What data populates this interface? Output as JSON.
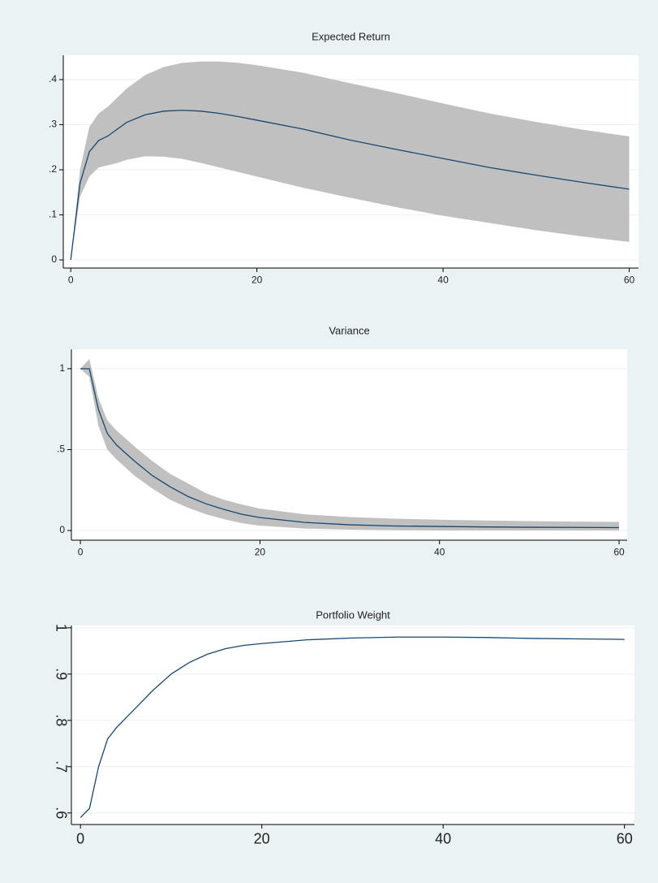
{
  "chart_data": [
    {
      "type": "line",
      "title": "Expected Return",
      "x": [
        0,
        1,
        2,
        3,
        4,
        5,
        6,
        8,
        10,
        12,
        14,
        16,
        18,
        20,
        25,
        30,
        35,
        40,
        45,
        50,
        55,
        60
      ],
      "values": [
        0,
        0.17,
        0.24,
        0.265,
        0.275,
        0.29,
        0.305,
        0.322,
        0.33,
        0.332,
        0.33,
        0.325,
        0.318,
        0.31,
        0.29,
        0.266,
        0.245,
        0.225,
        0.205,
        0.188,
        0.172,
        0.157
      ],
      "upper": [
        0,
        0.2,
        0.295,
        0.325,
        0.34,
        0.36,
        0.38,
        0.41,
        0.428,
        0.437,
        0.44,
        0.44,
        0.437,
        0.432,
        0.415,
        0.392,
        0.37,
        0.347,
        0.325,
        0.306,
        0.289,
        0.274
      ],
      "lower": [
        0,
        0.14,
        0.185,
        0.205,
        0.21,
        0.215,
        0.222,
        0.23,
        0.229,
        0.224,
        0.215,
        0.205,
        0.195,
        0.185,
        0.16,
        0.138,
        0.117,
        0.098,
        0.082,
        0.066,
        0.052,
        0.04
      ],
      "color": "#1a476f",
      "band_color": "#c0c0c0",
      "xlim": [
        -0.8,
        61
      ],
      "ylim": [
        -0.018,
        0.454
      ],
      "xticks": [
        0,
        20,
        40,
        60
      ],
      "yticks": [
        0,
        {
          "value": 0.1,
          "label": ".1"
        },
        {
          "value": 0.2,
          "label": ".2"
        },
        {
          "value": 0.3,
          "label": ".3"
        },
        {
          "value": 0.4,
          "label": ".4"
        }
      ],
      "grid": true
    },
    {
      "type": "line",
      "title": "Variance",
      "x": [
        0,
        1,
        2,
        3,
        4,
        5,
        6,
        8,
        10,
        12,
        14,
        16,
        18,
        20,
        25,
        30,
        35,
        40,
        45,
        50,
        55,
        60
      ],
      "values": [
        1,
        1,
        0.75,
        0.6,
        0.53,
        0.48,
        0.43,
        0.34,
        0.27,
        0.21,
        0.165,
        0.13,
        0.1,
        0.08,
        0.05,
        0.035,
        0.028,
        0.025,
        0.022,
        0.02,
        0.019,
        0.018
      ],
      "upper": [
        1,
        1.06,
        0.82,
        0.68,
        0.62,
        0.57,
        0.52,
        0.43,
        0.35,
        0.29,
        0.23,
        0.19,
        0.16,
        0.135,
        0.1,
        0.083,
        0.073,
        0.067,
        0.062,
        0.058,
        0.055,
        0.053
      ],
      "lower": [
        1,
        0.95,
        0.65,
        0.5,
        0.44,
        0.39,
        0.34,
        0.26,
        0.19,
        0.14,
        0.1,
        0.07,
        0.045,
        0.03,
        0.012,
        0.005,
        0.002,
        0,
        0,
        0,
        0,
        0
      ],
      "color": "#1a476f",
      "band_color": "#c0c0c0",
      "xlim": [
        -1,
        60.9
      ],
      "ylim": [
        -0.06,
        1.12
      ],
      "xticks": [
        0,
        20,
        40,
        60
      ],
      "yticks": [
        0,
        {
          "value": 0.5,
          "label": ".5"
        },
        1
      ],
      "grid": true
    },
    {
      "type": "line",
      "title": "Portfolio Weight",
      "x": [
        0,
        1,
        2,
        3,
        4,
        5,
        6,
        8,
        10,
        12,
        14,
        16,
        18,
        20,
        25,
        30,
        35,
        40,
        45,
        50,
        55,
        60
      ],
      "values": [
        0.59,
        0.61,
        0.7,
        0.76,
        0.785,
        0.805,
        0.825,
        0.865,
        0.9,
        0.925,
        0.943,
        0.955,
        0.962,
        0.966,
        0.974,
        0.978,
        0.98,
        0.98,
        0.979,
        0.977,
        0.976,
        0.975
      ],
      "color": "#1a476f",
      "xlim": [
        -1,
        61.1
      ],
      "ylim": [
        0.575,
        1.005
      ],
      "xticks": [
        0,
        20,
        40,
        60
      ],
      "yticks": [
        {
          "value": 0.6,
          "label": ".6"
        },
        {
          "value": 0.7,
          "label": ".7"
        },
        {
          "value": 0.8,
          "label": ".8"
        },
        {
          "value": 0.9,
          "label": ".9"
        },
        1
      ],
      "grid": true
    }
  ]
}
